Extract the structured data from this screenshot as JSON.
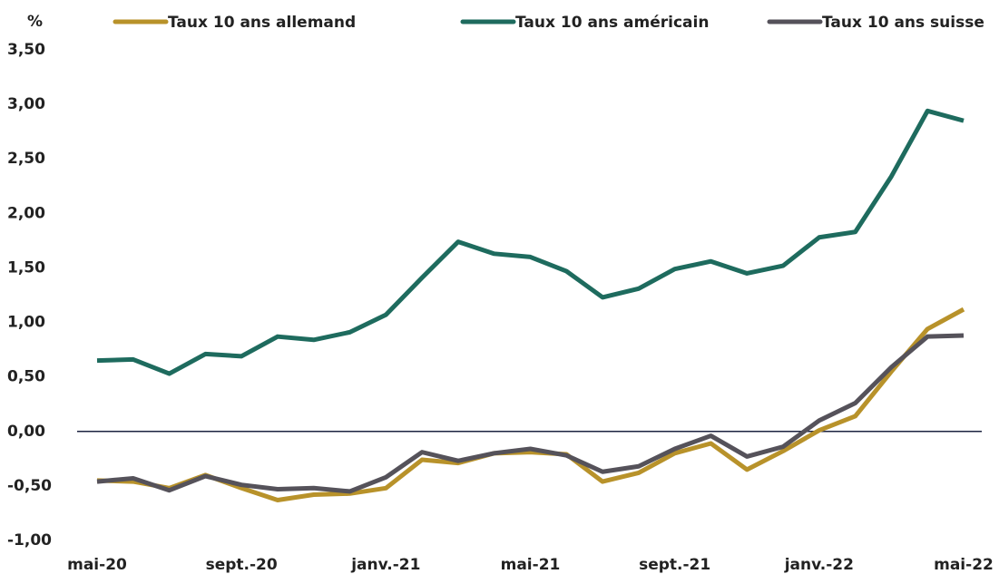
{
  "chart_data": {
    "type": "line",
    "y_label": "%",
    "categories": [
      "mai-20",
      null,
      null,
      null,
      "sept.-20",
      null,
      null,
      null,
      "janv.-21",
      null,
      null,
      null,
      "mai-21",
      null,
      null,
      null,
      "sept.-21",
      null,
      null,
      null,
      "janv.-22",
      null,
      null,
      null,
      "mai-22"
    ],
    "series": [
      {
        "name": "Taux 10 ans allemand",
        "color": "#b8922a",
        "values": [
          -0.45,
          -0.46,
          -0.52,
          -0.4,
          -0.52,
          -0.63,
          -0.58,
          -0.57,
          -0.52,
          -0.26,
          -0.29,
          -0.2,
          -0.19,
          -0.21,
          -0.46,
          -0.38,
          -0.2,
          -0.11,
          -0.35,
          -0.18,
          0.01,
          0.14,
          0.55,
          0.94,
          1.12
        ]
      },
      {
        "name": "Taux 10 ans américain",
        "color": "#1e6b5e",
        "values": [
          0.65,
          0.66,
          0.53,
          0.71,
          0.69,
          0.87,
          0.84,
          0.91,
          1.07,
          1.41,
          1.74,
          1.63,
          1.6,
          1.47,
          1.23,
          1.31,
          1.49,
          1.56,
          1.45,
          1.52,
          1.78,
          1.83,
          2.34,
          2.94,
          2.85
        ]
      },
      {
        "name": "Taux 10 ans suisse",
        "color": "#55525a",
        "values": [
          -0.46,
          -0.43,
          -0.54,
          -0.41,
          -0.49,
          -0.53,
          -0.52,
          -0.55,
          -0.42,
          -0.19,
          -0.27,
          -0.2,
          -0.16,
          -0.22,
          -0.37,
          -0.32,
          -0.16,
          -0.04,
          -0.23,
          -0.14,
          0.1,
          0.26,
          0.59,
          0.87,
          0.88
        ]
      }
    ],
    "ylim": [
      -1,
      3.5
    ],
    "yticks": [
      {
        "value": 3.5,
        "label": "3,50"
      },
      {
        "value": 3,
        "label": "3,00"
      },
      {
        "value": 2.5,
        "label": "2,50"
      },
      {
        "value": 2,
        "label": "2,00"
      },
      {
        "value": 1.5,
        "label": "1,50"
      },
      {
        "value": 1,
        "label": "1,00"
      },
      {
        "value": 0.5,
        "label": "0,50"
      },
      {
        "value": 0,
        "label": "0,00"
      },
      {
        "value": -0.5,
        "label": "-0,50"
      },
      {
        "value": -1,
        "label": "-1,00"
      }
    ],
    "grid": false,
    "legend": "top"
  }
}
